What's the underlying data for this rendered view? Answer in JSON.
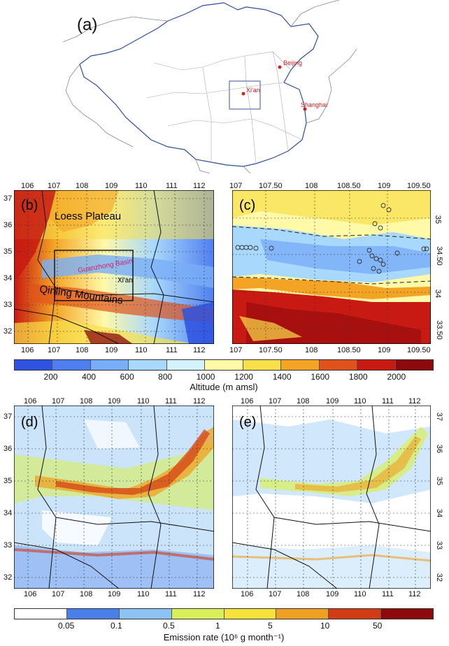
{
  "panel_a": {
    "label": "(a)",
    "cities": [
      {
        "name": "Beijing",
        "lon": 116.4,
        "lat": 39.9
      },
      {
        "name": "Xi'an",
        "lon": 108.9,
        "lat": 34.3
      },
      {
        "name": "Shanghai",
        "lon": 121.5,
        "lat": 31.2
      }
    ]
  },
  "panel_b": {
    "label": "(b)",
    "x_ticks": [
      "106",
      "107",
      "108",
      "109",
      "110",
      "111",
      "112"
    ],
    "y_ticks": [
      "37",
      "36",
      "35",
      "34",
      "33",
      "32"
    ],
    "annotations": {
      "loess": "Loess Plateau",
      "guanzhong": "Guanzhong Basin",
      "xian": "Xi'an",
      "qinling": "Qinling Mountains"
    }
  },
  "panel_c": {
    "label": "(c)",
    "x_ticks": [
      "107",
      "107.50",
      "108",
      "108.50",
      "109",
      "109.50"
    ],
    "y_ticks": [
      "35",
      "34.50",
      "34",
      "33.50"
    ]
  },
  "panel_d": {
    "label": "(d)",
    "x_ticks": [
      "106",
      "107",
      "108",
      "109",
      "110",
      "111",
      "112"
    ],
    "y_ticks": [
      "37",
      "36",
      "35",
      "34",
      "33",
      "32"
    ]
  },
  "panel_e": {
    "label": "(e)",
    "x_ticks": [
      "106",
      "107",
      "108",
      "109",
      "110",
      "111",
      "112"
    ],
    "y_ticks": [
      "37",
      "36",
      "35",
      "34",
      "33",
      "32"
    ]
  },
  "altitude_bar": {
    "title": "Altitude (m amsl)",
    "ticks": [
      "200",
      "400",
      "600",
      "800",
      "1000",
      "1200",
      "1400",
      "1600",
      "1800",
      "2000"
    ],
    "colors": [
      "#2f52e0",
      "#4f7ef0",
      "#78aef8",
      "#a8d8fb",
      "#d4f2fb",
      "#fff9a8",
      "#f9df4a",
      "#f3a424",
      "#e0521a",
      "#c81a12",
      "#8c0a0c"
    ]
  },
  "emission_bar": {
    "title": "Emission rate (10⁶ g month⁻¹)",
    "ticks": [
      "0.05",
      "0.1",
      "0.5",
      "1",
      "5",
      "10",
      "50"
    ],
    "colors": [
      "#ffffff",
      "#4a7ee8",
      "#8cc3f4",
      "#d9ef5a",
      "#f7e23a",
      "#f0a021",
      "#d23c14",
      "#8c0a0c"
    ]
  }
}
